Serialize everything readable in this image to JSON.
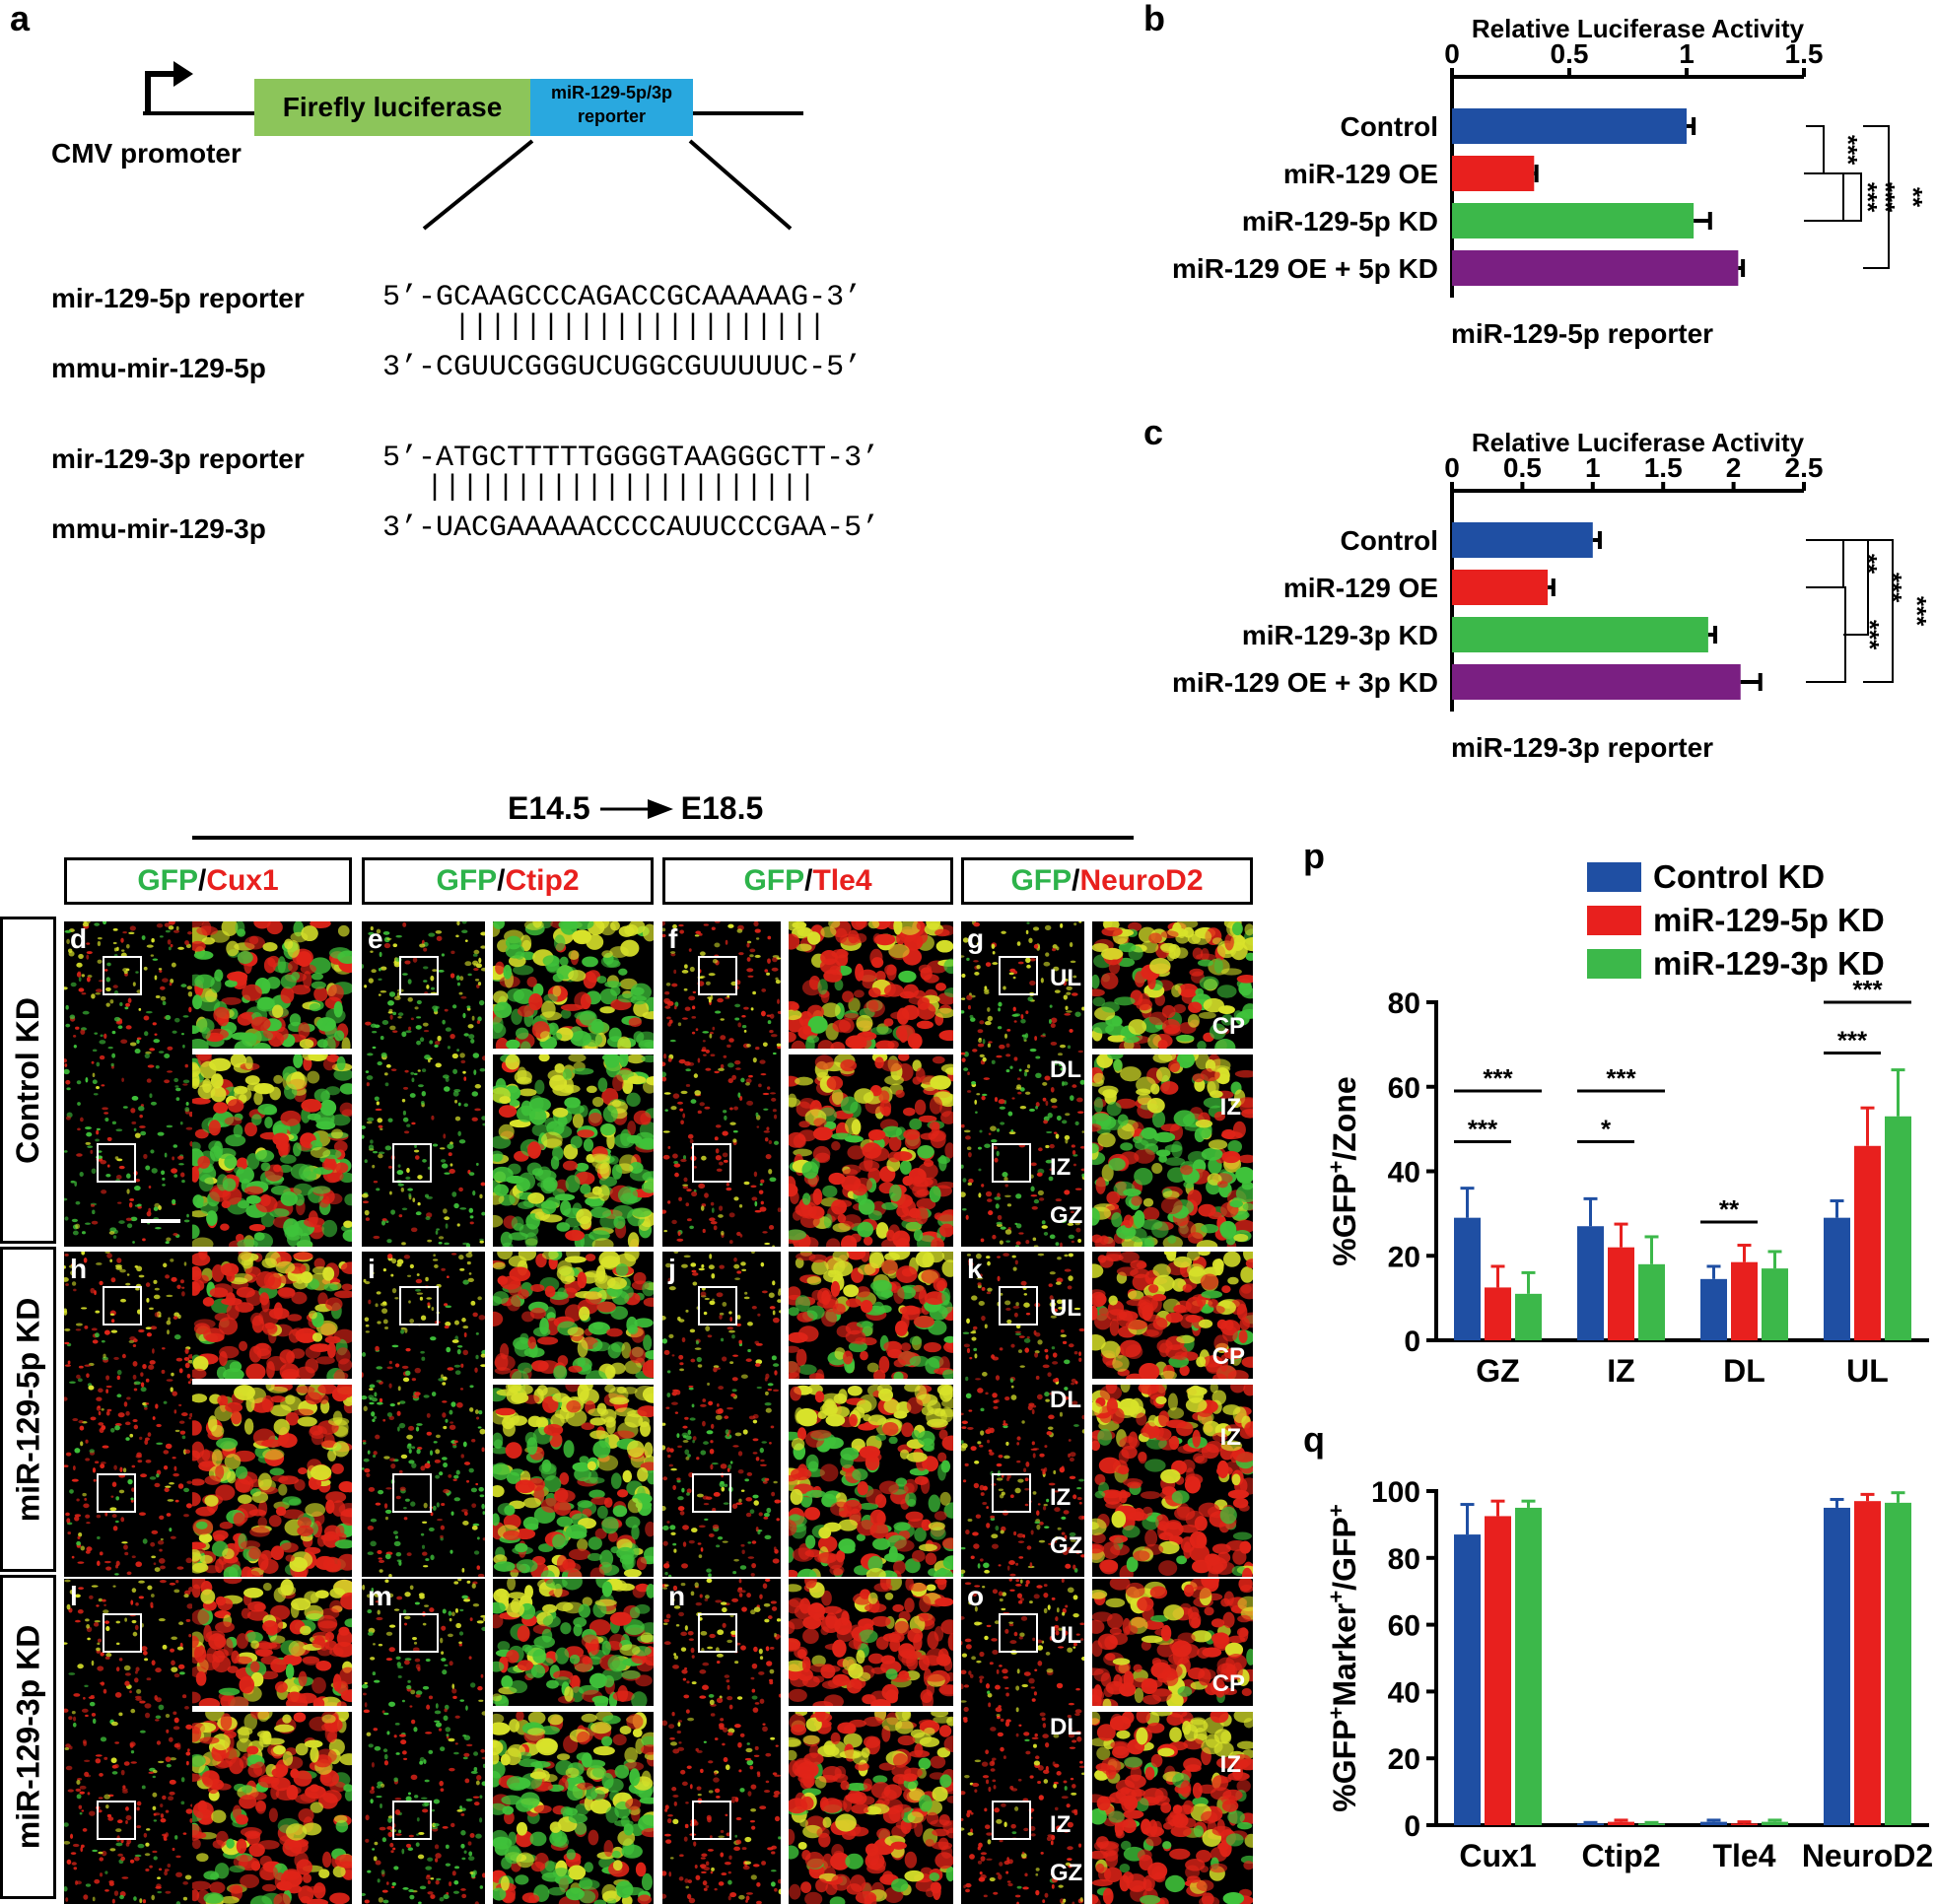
{
  "panel_a": {
    "label": "a",
    "promoter": "CMV promoter",
    "luciferase": "Firefly luciferase",
    "reporter_box": [
      "miR-129-5p/3p",
      "reporter"
    ],
    "rows": [
      {
        "name": "mir-129-5p reporter",
        "seq": "5’-GCAAGCCCAGACCGCAAAAAG-3’"
      },
      {
        "name": "mmu-mir-129-5p",
        "seq": "3’-CGUUCGGGUCUGGCGUUUUUC-5’"
      },
      {
        "name": "mir-129-3p reporter",
        "seq": "5’-ATGCTTTTTGGGGTAAGGGCTT-3’"
      },
      {
        "name": "mmu-mir-129-3p",
        "seq": "3’-UACGAAAAACCCCAUUCCCGAA-5’"
      }
    ],
    "pairs_5p": "|||||||||||||||||||||",
    "pairs_3p": "||||||||||||||||||||||"
  },
  "colors": {
    "blue": "#1f4fa3",
    "red": "#e8201e",
    "green": "#3cb84a",
    "purple": "#7a1f82"
  },
  "chart_data": [
    {
      "panel": "b",
      "type": "bar",
      "orientation": "horizontal",
      "title": "Relative Luciferase Activity",
      "xlabel": "miR-129-5p reporter",
      "categories": [
        "Control",
        "miR-129 OE",
        "miR-129-5p KD",
        "miR-129 OE + 5p KD"
      ],
      "values": [
        1.0,
        0.35,
        1.03,
        1.22
      ],
      "errors": [
        0.03,
        0.01,
        0.07,
        0.02
      ],
      "xlim": [
        0,
        1.5
      ],
      "ticks": [
        "0",
        "0.5",
        "1",
        "1.5"
      ],
      "tick_values": [
        0,
        0.5,
        1,
        1.5
      ],
      "significance": [
        "***",
        "***",
        "***",
        "**"
      ]
    },
    {
      "panel": "c",
      "type": "bar",
      "orientation": "horizontal",
      "title": "Relative Luciferase Activity",
      "xlabel": "miR-129-3p reporter",
      "categories": [
        "Control",
        "miR-129 OE",
        "miR-129-3p KD",
        "miR-129 OE + 3p KD"
      ],
      "values": [
        1.0,
        0.68,
        1.82,
        2.05
      ],
      "errors": [
        0.05,
        0.04,
        0.05,
        0.14
      ],
      "xlim": [
        0,
        2.5
      ],
      "ticks": [
        "0",
        "0.5",
        "1",
        "1.5",
        "2",
        "2.5"
      ],
      "tick_values": [
        0,
        0.5,
        1,
        1.5,
        2,
        2.5
      ],
      "significance": [
        "**",
        "***",
        "***",
        "***"
      ]
    },
    {
      "panel": "p",
      "type": "bar",
      "ylabel": "%GFP+/Zone",
      "categories": [
        "GZ",
        "IZ",
        "DL",
        "UL"
      ],
      "series": [
        {
          "name": "Control KD",
          "values": [
            29,
            27,
            14.5,
            29
          ],
          "errors": [
            7,
            6.5,
            3,
            4
          ]
        },
        {
          "name": "miR-129-5p KD",
          "values": [
            12.5,
            22,
            18.5,
            46
          ],
          "errors": [
            5,
            5.5,
            4,
            9
          ]
        },
        {
          "name": "miR-129-3p KD",
          "values": [
            11,
            18,
            17,
            53
          ],
          "errors": [
            5,
            6.5,
            4,
            11
          ]
        }
      ],
      "ylim": [
        0,
        80
      ],
      "ticks": [
        "0",
        "20",
        "40",
        "60",
        "80"
      ],
      "tick_values": [
        0,
        20,
        40,
        60,
        80
      ],
      "significance": [
        {
          "group": 0,
          "pair": [
            0,
            2
          ],
          "stars": "***",
          "y": 59
        },
        {
          "group": 0,
          "pair": [
            0,
            1
          ],
          "stars": "***",
          "y": 47
        },
        {
          "group": 1,
          "pair": [
            0,
            2
          ],
          "stars": "***",
          "y": 59
        },
        {
          "group": 1,
          "pair": [
            0,
            1
          ],
          "stars": "*",
          "y": 47
        },
        {
          "group": 2,
          "pair": [
            0,
            1
          ],
          "stars": "**",
          "y": 28
        },
        {
          "group": 3,
          "pair": [
            0,
            2
          ],
          "stars": "***",
          "y": 80
        },
        {
          "group": 3,
          "pair": [
            0,
            1
          ],
          "stars": "***",
          "y": 68
        }
      ]
    },
    {
      "panel": "q",
      "type": "bar",
      "ylabel": "%GFP+Marker+/GFP+",
      "categories": [
        "Cux1",
        "Ctip2",
        "Tle4",
        "NeuroD2"
      ],
      "series": [
        {
          "name": "Control KD",
          "values": [
            87,
            0.5,
            1,
            95
          ],
          "errors": [
            9,
            0.3,
            0.5,
            2.5
          ]
        },
        {
          "name": "miR-129-5p KD",
          "values": [
            92.5,
            1,
            0.5,
            97
          ],
          "errors": [
            4.5,
            0.5,
            0.5,
            2
          ]
        },
        {
          "name": "miR-129-3p KD",
          "values": [
            95,
            0.5,
            1,
            96.5
          ],
          "errors": [
            2,
            0.3,
            0.5,
            3
          ]
        }
      ],
      "ylim": [
        0,
        100
      ],
      "ticks": [
        "0",
        "20",
        "40",
        "60",
        "80",
        "100"
      ],
      "tick_values": [
        0,
        20,
        40,
        60,
        80,
        100
      ]
    }
  ],
  "panel_labels": {
    "b": "b",
    "c": "c",
    "p": "p",
    "q": "q"
  },
  "timeline": {
    "start": "E14.5",
    "end": "E18.5"
  },
  "columns": [
    {
      "green": "GFP",
      "red": "Cux1"
    },
    {
      "green": "GFP",
      "red": "Ctip2"
    },
    {
      "green": "GFP",
      "red": "Tle4"
    },
    {
      "green": "GFP",
      "red": "NeuroD2"
    }
  ],
  "slash": "/",
  "rows": [
    "Control KD",
    "miR-129-5p KD",
    "miR-129-3p KD"
  ],
  "micro_labels": [
    [
      "d",
      "e",
      "f",
      "g"
    ],
    [
      "h",
      "i",
      "j",
      "k"
    ],
    [
      "l",
      "m",
      "n",
      "o"
    ]
  ],
  "zones": {
    "UL": "UL",
    "DL": "DL",
    "IZ": "IZ",
    "GZ": "GZ",
    "CP": "CP"
  },
  "legend": [
    "Control KD",
    "miR-129-5p KD",
    "miR-129-3p KD"
  ]
}
